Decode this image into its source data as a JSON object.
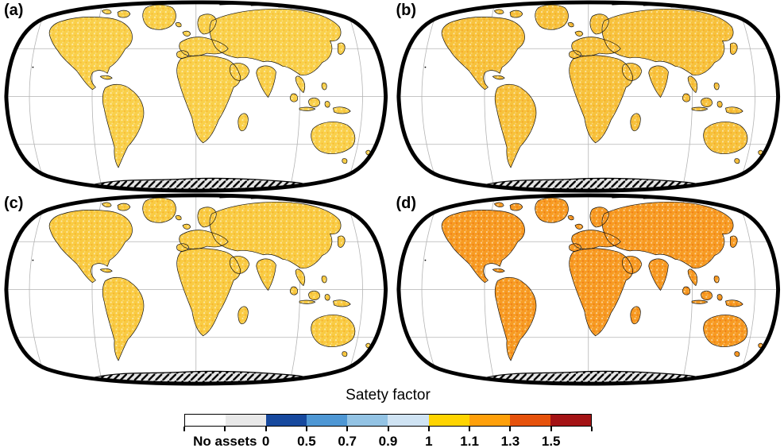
{
  "panels": [
    {
      "label": "(a)",
      "colors": {
        "land": "#f9d04a",
        "accent": "#f79d1e",
        "hot": "#ef7d16",
        "cool": "#9cc6e4",
        "desert": "#ffffff"
      }
    },
    {
      "label": "(b)",
      "colors": {
        "land": "#f7c23c",
        "accent": "#f58a14",
        "hot": "#e8540e",
        "cool": "#9cc6e4",
        "desert": "#ffffff"
      }
    },
    {
      "label": "(c)",
      "colors": {
        "land": "#f9cb42",
        "accent": "#f69316",
        "hot": "#e8540e",
        "cool": "#9cc6e4",
        "desert": "#ffffff"
      }
    },
    {
      "label": "(d)",
      "colors": {
        "land": "#f79b22",
        "accent": "#e8540e",
        "hot": "#a81414",
        "cool": "#8fc0e2",
        "desert": "#ffffff"
      }
    }
  ],
  "legend": {
    "title": "Satety factor",
    "no_assets_label": "No assets",
    "tick_labels": [
      "0",
      "0.5",
      "0.7",
      "0.9",
      "1",
      "1.1",
      "1.3",
      "1.5"
    ],
    "segment_colors": [
      "#ffffff",
      "#e8e8e8",
      "#17499e",
      "#4e97d4",
      "#93c3e4",
      "#cfe3f3",
      "#ffd400",
      "#ffa00a",
      "#e6520c",
      "#a41315"
    ],
    "map_outline_color": "#000000",
    "graticule_color": "#b3b3b3",
    "antarctica_fill": "#e6e6e6"
  }
}
